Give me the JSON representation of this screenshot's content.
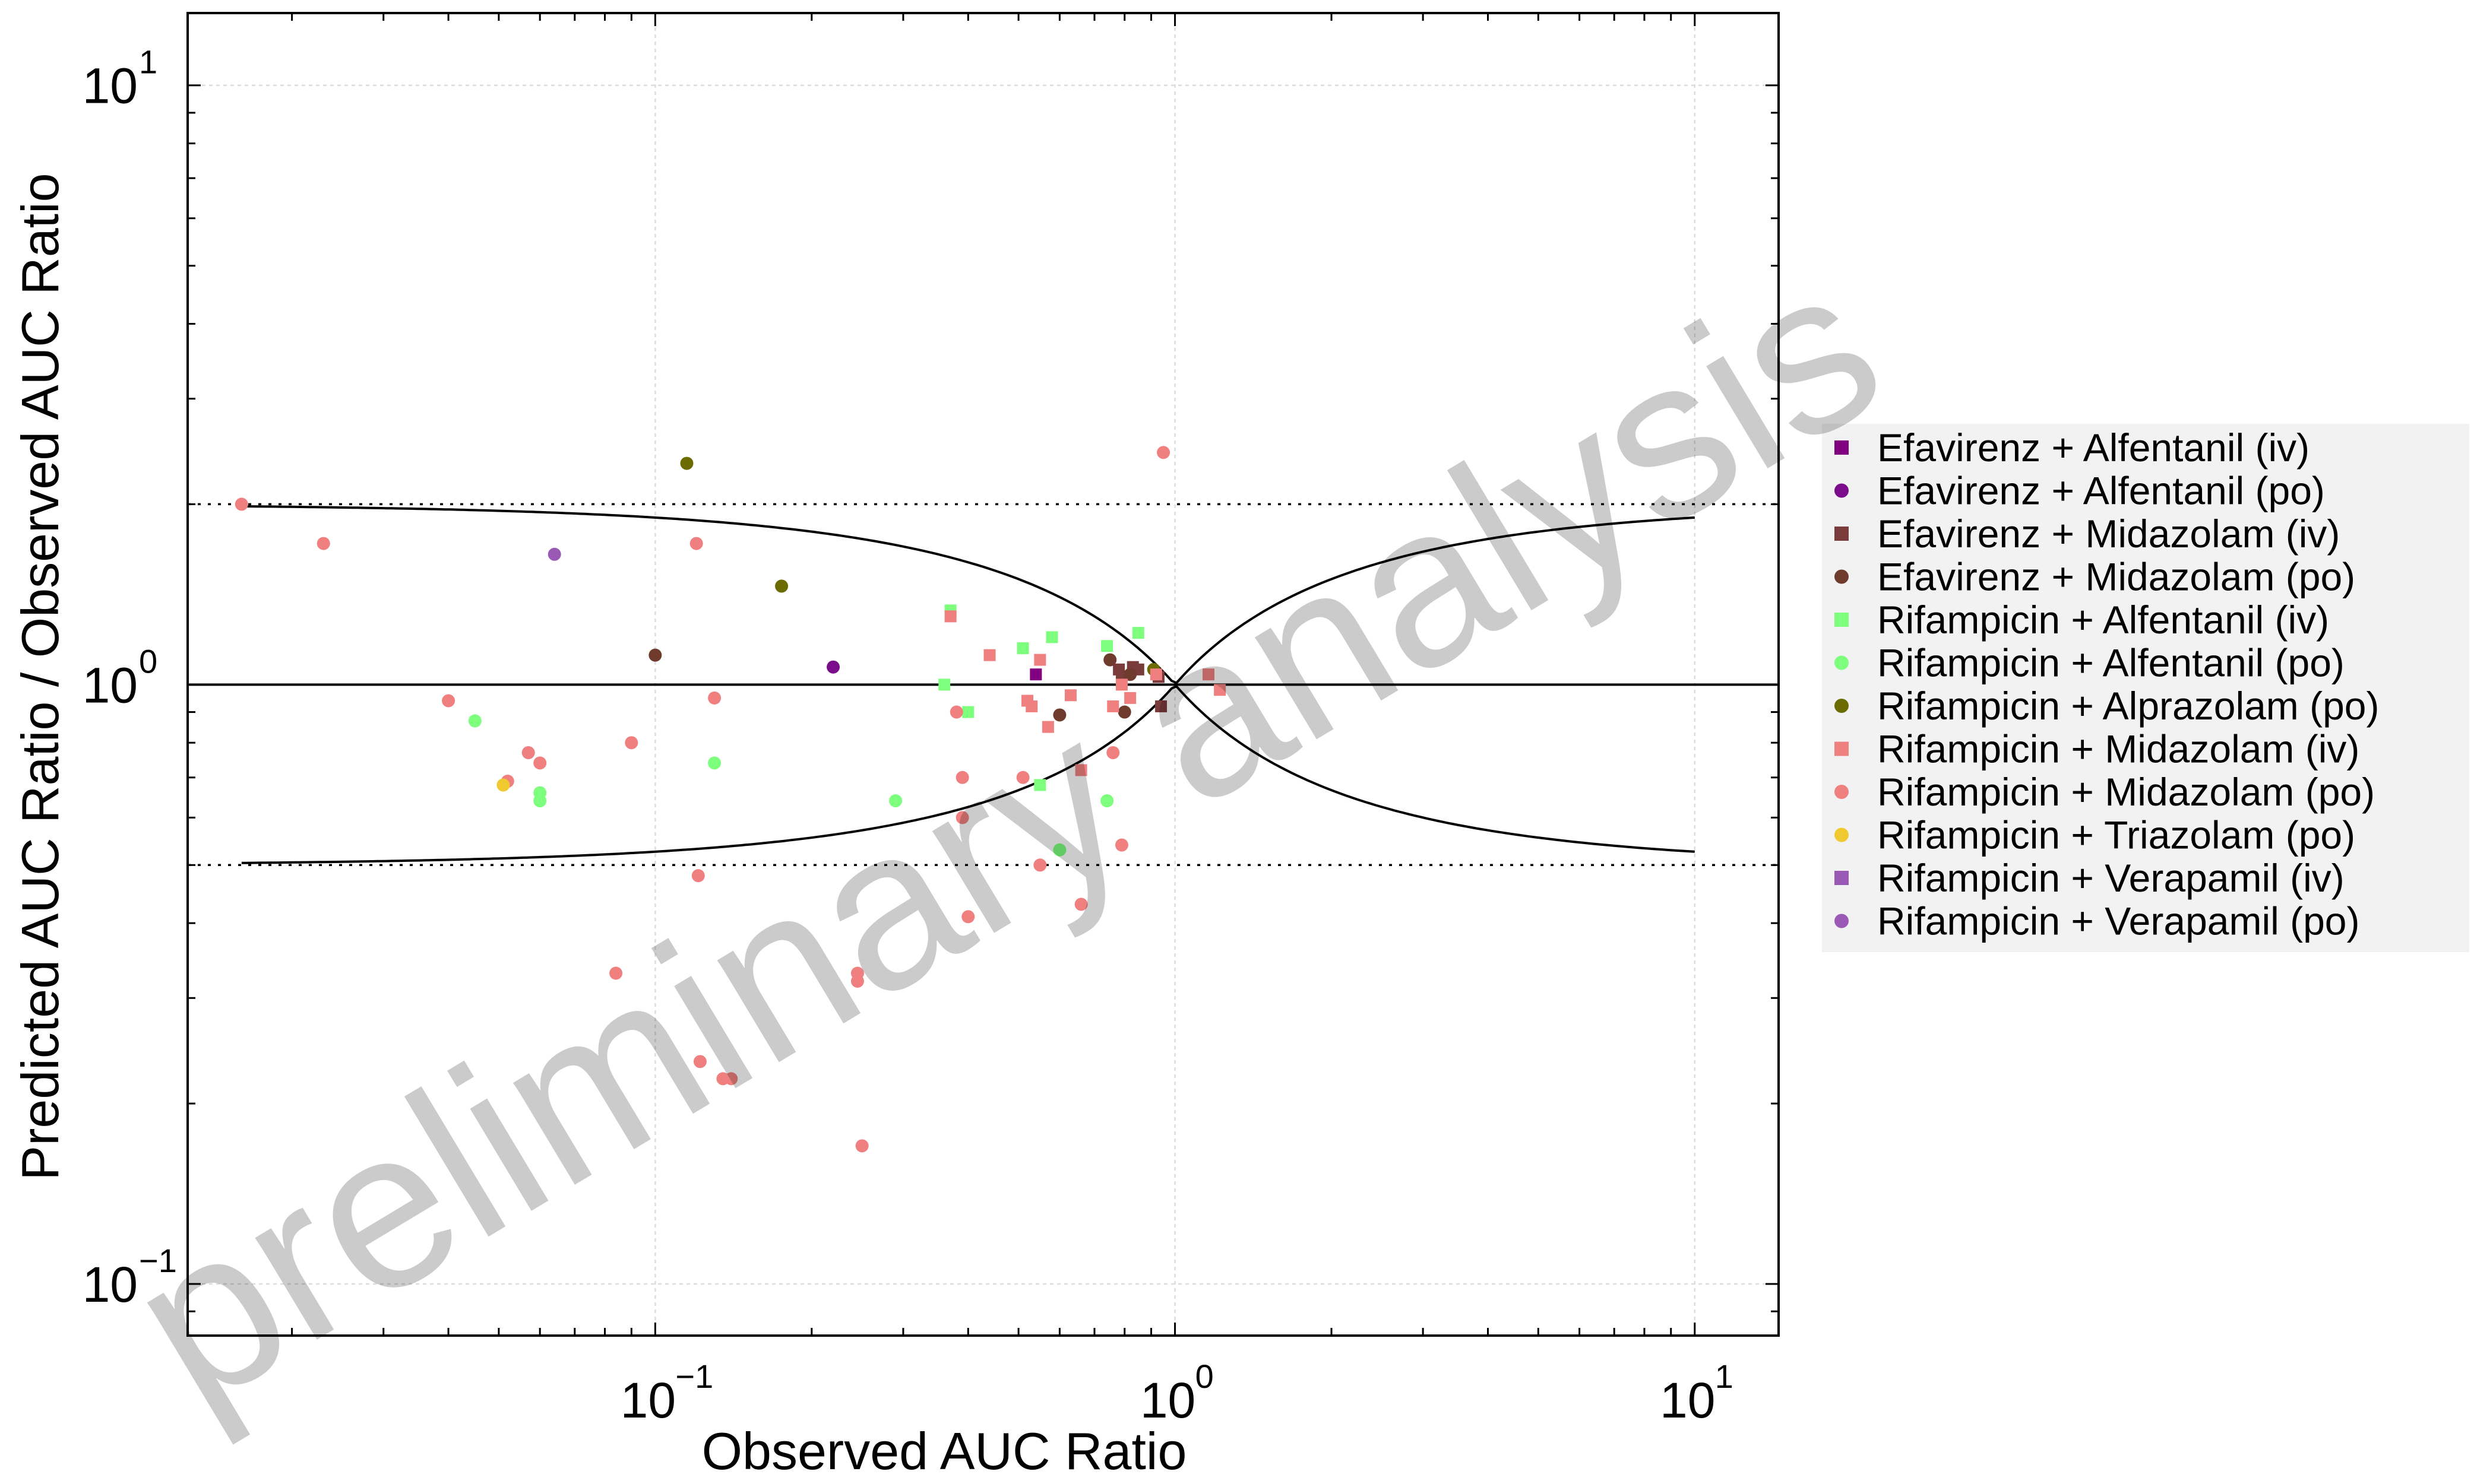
{
  "chart_data": {
    "type": "scatter",
    "xlabel": "Observed AUC Ratio",
    "ylabel": "Predicted AUC Ratio / Observed AUC Ratio",
    "xscale": "log",
    "yscale": "log",
    "xlim": [
      0.0126,
      14.5
    ],
    "ylim": [
      0.082,
      13.2
    ],
    "xticks": [
      {
        "base": "10",
        "exp": "−1"
      },
      {
        "base": "10",
        "exp": "0"
      },
      {
        "base": "10",
        "exp": "1"
      }
    ],
    "yticks": [
      {
        "base": "10",
        "exp": "−1"
      },
      {
        "base": "10",
        "exp": "0"
      },
      {
        "base": "10",
        "exp": "1"
      }
    ],
    "grid": true,
    "legend_position": "right",
    "watermark": "preliminary analysis",
    "reference_lines": {
      "identity_y": 1,
      "twofold_bounds": [
        0.5,
        2
      ],
      "guest_limits_x_range": [
        0.016,
        10
      ]
    },
    "series": [
      {
        "name": "Efavirenz + Alfentanil (iv)",
        "marker": "square",
        "color": "#800080",
        "points": [
          [
            0.54,
            1.04
          ]
        ]
      },
      {
        "name": "Efavirenz + Alfentanil (po)",
        "marker": "circle",
        "color": "#7b0d8c",
        "points": [
          [
            0.22,
            1.07
          ]
        ]
      },
      {
        "name": "Efavirenz + Midazolam (iv)",
        "marker": "square",
        "color": "#7a3b3b",
        "points": [
          [
            0.78,
            1.06
          ],
          [
            0.79,
            1.03
          ],
          [
            0.83,
            1.07
          ],
          [
            0.85,
            1.06
          ],
          [
            0.93,
            1.03
          ],
          [
            0.94,
            0.92
          ]
        ]
      },
      {
        "name": "Efavirenz + Midazolam (po)",
        "marker": "circle",
        "color": "#6e3b2d",
        "points": [
          [
            0.1,
            1.12
          ],
          [
            0.6,
            0.89
          ],
          [
            0.75,
            1.1
          ],
          [
            0.8,
            0.9
          ],
          [
            0.82,
            1.04
          ]
        ]
      },
      {
        "name": "Rifampicin + Alfentanil (iv)",
        "marker": "square",
        "color": "#7dff7d",
        "points": [
          [
            0.36,
            1.0
          ],
          [
            0.37,
            1.33
          ],
          [
            0.4,
            0.9
          ],
          [
            0.51,
            1.15
          ],
          [
            0.55,
            0.68
          ],
          [
            0.58,
            1.2
          ],
          [
            0.74,
            1.16
          ],
          [
            0.85,
            1.22
          ]
        ]
      },
      {
        "name": "Rifampicin + Alfentanil (po)",
        "marker": "circle",
        "color": "#7dff7d",
        "points": [
          [
            0.045,
            0.87
          ],
          [
            0.06,
            0.64
          ],
          [
            0.06,
            0.66
          ],
          [
            0.13,
            0.74
          ],
          [
            0.29,
            0.64
          ],
          [
            0.6,
            0.53
          ],
          [
            0.74,
            0.64
          ]
        ]
      },
      {
        "name": "Rifampicin + Alprazolam (po)",
        "marker": "circle",
        "color": "#6b6b00",
        "points": [
          [
            0.115,
            2.34
          ],
          [
            0.175,
            1.46
          ],
          [
            0.91,
            1.06
          ]
        ]
      },
      {
        "name": "Rifampicin + Midazolam (iv)",
        "marker": "square",
        "color": "#f08080",
        "points": [
          [
            0.37,
            1.3
          ],
          [
            0.44,
            1.12
          ],
          [
            0.52,
            0.94
          ],
          [
            0.53,
            0.92
          ],
          [
            0.55,
            1.1
          ],
          [
            0.57,
            0.85
          ],
          [
            0.63,
            0.96
          ],
          [
            0.66,
            0.72
          ],
          [
            0.76,
            0.92
          ],
          [
            0.79,
            1.0
          ],
          [
            0.82,
            0.95
          ],
          [
            0.92,
            1.04
          ],
          [
            1.16,
            1.04
          ],
          [
            1.22,
            0.98
          ]
        ]
      },
      {
        "name": "Rifampicin + Midazolam (po)",
        "marker": "circle",
        "color": "#f08080",
        "points": [
          [
            0.016,
            2.0
          ],
          [
            0.023,
            1.72
          ],
          [
            0.04,
            0.94
          ],
          [
            0.052,
            0.69
          ],
          [
            0.057,
            0.77
          ],
          [
            0.06,
            0.74
          ],
          [
            0.084,
            0.33
          ],
          [
            0.09,
            0.8
          ],
          [
            0.12,
            1.72
          ],
          [
            0.121,
            0.48
          ],
          [
            0.122,
            0.235
          ],
          [
            0.135,
            0.22
          ],
          [
            0.14,
            0.22
          ],
          [
            0.13,
            0.95
          ],
          [
            0.245,
            0.32
          ],
          [
            0.245,
            0.33
          ],
          [
            0.25,
            0.17
          ],
          [
            0.38,
            0.9
          ],
          [
            0.39,
            0.6
          ],
          [
            0.39,
            0.7
          ],
          [
            0.4,
            0.41
          ],
          [
            0.51,
            0.7
          ],
          [
            0.55,
            0.5
          ],
          [
            0.66,
            0.43
          ],
          [
            0.76,
            0.77
          ],
          [
            0.79,
            0.54
          ],
          [
            0.95,
            2.44
          ]
        ]
      },
      {
        "name": "Rifampicin + Triazolam (po)",
        "marker": "circle",
        "color": "#f0c830",
        "points": [
          [
            0.051,
            0.68
          ]
        ]
      },
      {
        "name": "Rifampicin + Verapamil (iv)",
        "marker": "square",
        "color": "#9b59b6",
        "points": []
      },
      {
        "name": "Rifampicin + Verapamil (po)",
        "marker": "circle",
        "color": "#9b59b6",
        "points": [
          [
            0.064,
            1.65
          ]
        ]
      }
    ]
  }
}
